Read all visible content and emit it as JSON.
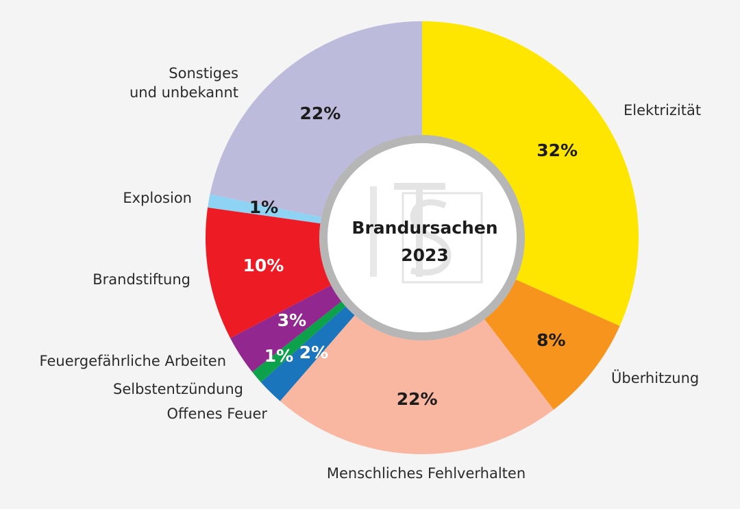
{
  "chart_data": {
    "type": "pie",
    "title_lines": [
      "Brandursachen",
      "2023"
    ],
    "unit": "%",
    "slices": [
      {
        "label": "Elektrizität",
        "value": 32,
        "value_label": "32%",
        "color": "#ffe600",
        "text_color": "#1c1c1c"
      },
      {
        "label": "Überhitzung",
        "value": 8,
        "value_label": "8%",
        "color": "#f7941d",
        "text_color": "#1c1c1c"
      },
      {
        "label": "Menschliches Fehlverhalten",
        "value": 22,
        "value_label": "22%",
        "color": "#f9b7a2",
        "text_color": "#1c1c1c"
      },
      {
        "label": "Offenes Feuer",
        "value": 2,
        "value_label": "2%",
        "color": "#1b75bc",
        "text_color": "#ffffff"
      },
      {
        "label": "Selbstentzündung",
        "value": 1,
        "value_label": "1%",
        "color": "#0da14b",
        "text_color": "#ffffff"
      },
      {
        "label": "Feuergefährliche Arbeiten",
        "value": 3,
        "value_label": "3%",
        "color": "#92278f",
        "text_color": "#ffffff"
      },
      {
        "label": "Brandstiftung",
        "value": 10,
        "value_label": "10%",
        "color": "#ed1c24",
        "text_color": "#ffffff"
      },
      {
        "label": "Explosion",
        "value": 1,
        "value_label": "1%",
        "color": "#8fd3f4",
        "text_color": "#1c1c1c"
      },
      {
        "label": "Sonstiges und unbekannt",
        "label_lines": [
          "Sonstiges",
          "und unbekannt"
        ],
        "value": 22,
        "value_label": "22%",
        "color": "#bcbbdc",
        "text_color": "#1c1c1c"
      }
    ]
  }
}
